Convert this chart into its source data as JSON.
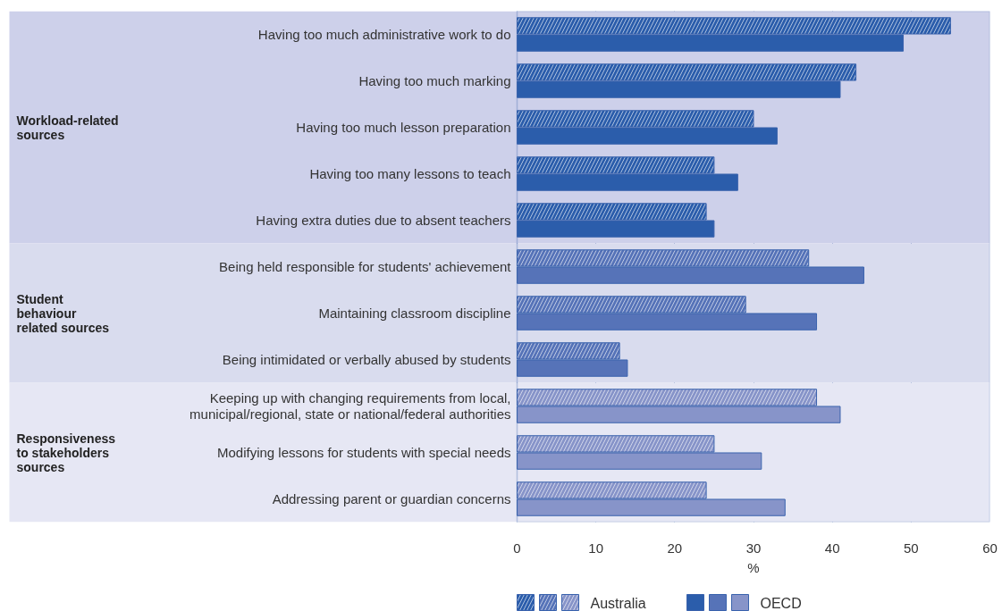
{
  "chart_data": {
    "type": "bar",
    "orientation": "horizontal",
    "categories": [
      "Having too much administrative work to do",
      "Having too much marking",
      "Having too much lesson preparation",
      "Having too many lessons to teach",
      "Having extra duties due to absent teachers",
      "Being held responsible for students' achievement",
      "Maintaining classroom discipline",
      "Being intimidated or verbally abused by students",
      "Keeping up with changing requirements from local,\nmunicipal/regional, state or national/federal authorities",
      "Modifying lessons for students with special needs",
      "Addressing parent or guardian concerns"
    ],
    "series": [
      {
        "name": "Australia",
        "colors": [
          "#2b5dab",
          "#2b5dab",
          "#2b5dab",
          "#2b5dab",
          "#2b5dab",
          "#5673b8",
          "#5673b8",
          "#5673b8",
          "#8794c9",
          "#8794c9",
          "#8794c9"
        ],
        "values": [
          55,
          43,
          30,
          25,
          24,
          37,
          29,
          13,
          38,
          25,
          24
        ]
      },
      {
        "name": "OECD",
        "colors": [
          "#2b5dab",
          "#2b5dab",
          "#2b5dab",
          "#2b5dab",
          "#2b5dab",
          "#5673b8",
          "#5673b8",
          "#5673b8",
          "#8794c9",
          "#8794c9",
          "#8794c9"
        ],
        "values": [
          49,
          41,
          33,
          28,
          25,
          44,
          38,
          14,
          41,
          31,
          34
        ]
      }
    ],
    "bands": [
      {
        "axis": "y",
        "from": "Having too much administrative work to do",
        "to": "Having extra duties due to absent teachers",
        "label": "Workload-related sources",
        "color": "#cdd0ea"
      },
      {
        "axis": "y",
        "from": "Being held responsible for students' achievement",
        "to": "Being intimidated or verbally abused by students",
        "label": "Student behaviour related sources",
        "color": "#d9dcee"
      },
      {
        "axis": "y",
        "from": "Keeping up with changing requirements from local,\nmunicipal/regional, state or national/federal authorities",
        "to": "Addressing parent or guardian concerns",
        "label": "Responsiveness to stakeholders sources",
        "color": "#e6e7f4"
      }
    ],
    "xlabel": "%",
    "xlim": [
      0,
      60
    ],
    "xticks": [
      0,
      10,
      20,
      30,
      40,
      50,
      60
    ],
    "grid": "x",
    "legend": "bottom"
  }
}
